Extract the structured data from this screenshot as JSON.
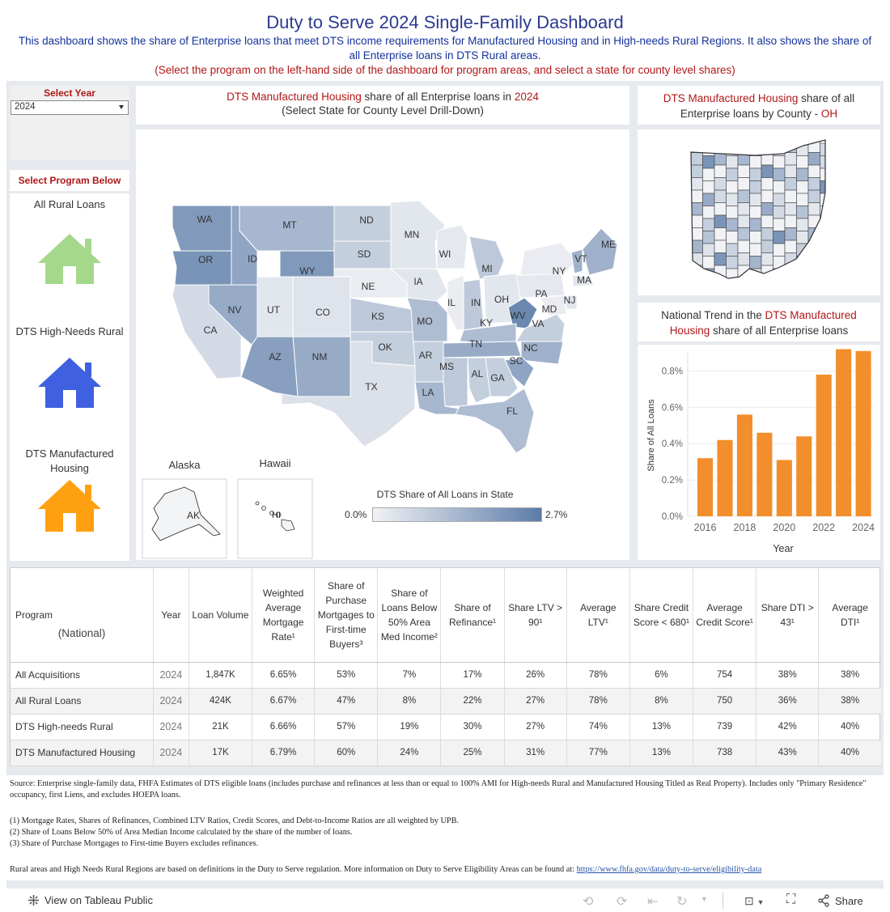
{
  "header": {
    "title": "Duty to Serve 2024 Single-Family Dashboard",
    "description": "This dashboard shows the share of Enterprise loans that meet DTS income requirements for Manufactured Housing and in High-needs Rural Regions. It also shows the share of all Enterprise loans in DTS Rural areas.",
    "instruction": "(Select the program on the left-hand side of the dashboard for program areas, and select a state for county level shares)"
  },
  "year_filter": {
    "label": "Select Year",
    "value": "2024"
  },
  "program_selector": {
    "label": "Select Program Below",
    "programs": [
      {
        "label": "All Rural Loans",
        "color": "#a5d88a"
      },
      {
        "label": "DTS High-Needs Rural",
        "color": "#3f60e0"
      },
      {
        "label": "DTS Manufactured Housing",
        "color": "#ffa010"
      }
    ]
  },
  "map_panel": {
    "title_program": "DTS Manufactured Housing",
    "title_mid": " share of all Enterprise loans in ",
    "title_year": "2024",
    "subtitle": "(Select State for County Level Drill-Down)",
    "alaska_label": "Alaska",
    "hawaii_label": "Hawaii",
    "legend_title": "DTS Share of All Loans in State",
    "legend_min": "0.0%",
    "legend_max": "2.7%",
    "color_low": "#f1f2f5",
    "color_high": "#5b7ca8",
    "state_labels": [
      "WA",
      "OR",
      "ID",
      "MT",
      "WY",
      "ND",
      "SD",
      "NE",
      "MN",
      "WI",
      "IA",
      "IL",
      "MI",
      "IN",
      "OH",
      "PA",
      "NY",
      "VT",
      "ME",
      "MA",
      "NJ",
      "MD",
      "WV",
      "VA",
      "KY",
      "TN",
      "NC",
      "SC",
      "GA",
      "AL",
      "MS",
      "LA",
      "AR",
      "MO",
      "KS",
      "OK",
      "TX",
      "NM",
      "AZ",
      "CO",
      "UT",
      "NV",
      "CA",
      "FL",
      "AK",
      "HI"
    ]
  },
  "county_panel": {
    "title_program": "DTS Manufactured Housing",
    "title_mid": " share of all Enterprise loans by County - ",
    "state": "OH"
  },
  "trend_panel": {
    "title_pre": "National Trend in the ",
    "title_program": "DTS Manufactured Housing",
    "title_post": " share of all Enterprise loans",
    "bar_color": "#f28e2b"
  },
  "chart_data": {
    "type": "bar",
    "title": "National Trend in the DTS Manufactured Housing share of all Enterprise loans",
    "xlabel": "Year",
    "ylabel": "Share of All Loans",
    "x": [
      2016,
      2017,
      2018,
      2019,
      2020,
      2021,
      2022,
      2023,
      2024
    ],
    "values": [
      0.32,
      0.42,
      0.56,
      0.46,
      0.31,
      0.44,
      0.78,
      0.92,
      0.91
    ],
    "ylim": [
      0,
      0.9
    ],
    "yticks": [
      "0.0%",
      "0.2%",
      "0.4%",
      "0.6%",
      "0.8%"
    ],
    "xticks": [
      "2016",
      "2018",
      "2020",
      "2022",
      "2024"
    ]
  },
  "table": {
    "program_header": "Program",
    "program_subheader": "(National)",
    "headers": [
      "Year",
      "Loan Volume",
      "Weighted Average Mortgage Rate¹",
      "Share of Purchase Mortgages to First-time Buyers³",
      "Share of Loans Below 50% Area Med Income²",
      "Share of Refinance¹",
      "Share LTV > 90¹",
      "Average LTV¹",
      "Share Credit Score < 680¹",
      "Average Credit Score¹",
      "Share DTI > 43¹",
      "Average DTI¹"
    ],
    "rows": [
      {
        "program": "All Acquisitions",
        "cells": [
          "2024",
          "1,847K",
          "6.65%",
          "53%",
          "7%",
          "17%",
          "26%",
          "78%",
          "6%",
          "754",
          "38%",
          "38%"
        ]
      },
      {
        "program": "All Rural Loans",
        "cells": [
          "2024",
          "424K",
          "6.67%",
          "47%",
          "8%",
          "22%",
          "27%",
          "78%",
          "8%",
          "750",
          "36%",
          "38%"
        ]
      },
      {
        "program": "DTS High-needs Rural",
        "cells": [
          "2024",
          "21K",
          "6.66%",
          "57%",
          "19%",
          "30%",
          "27%",
          "74%",
          "13%",
          "739",
          "42%",
          "40%"
        ]
      },
      {
        "program": "DTS Manufactured Housing",
        "cells": [
          "2024",
          "17K",
          "6.79%",
          "60%",
          "24%",
          "25%",
          "31%",
          "77%",
          "13%",
          "738",
          "43%",
          "40%"
        ]
      }
    ]
  },
  "notes": {
    "source": "Source: Enterprise single-family data, FHFA Estimates of DTS eligible loans (includes purchase and refinances at less than or equal to 100% AMI for High-needs Rural and Manufactured Housing Titled as Real Property). Includes only \"Primary Residence\" occupancy, first Liens, and excludes HOEPA loans.",
    "note1": "(1) Mortgage Rates, Shares of Refinances, Combined LTV Ratios, Credit Scores, and Debt-to-Income Ratios are all weighted by UPB.",
    "note2": "(2) Share of Loans Below 50% of Area Median Income calculated by the share of the number of loans.",
    "note3": "(3) Share of Purchase Mortgages to First-time Buyers excludes refinances.",
    "rural_text": "Rural areas and High Needs Rural Regions are based on definitions in the Duty to Serve regulation. More information on Duty to Serve Eligibility Areas can be found at: ",
    "link": "https://www.fhfa.gov/data/duty-to-serve/eligibility-data"
  },
  "footer": {
    "view_label": "View on Tableau Public",
    "share_label": "Share"
  }
}
